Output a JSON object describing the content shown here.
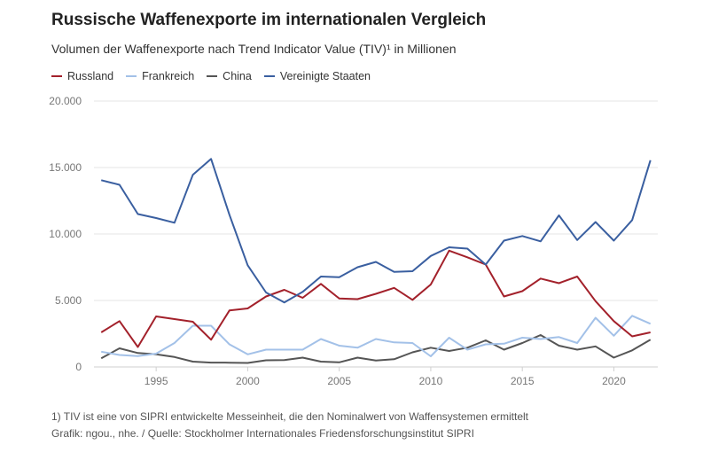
{
  "title": "Russische Waffenexporte im internationalen Vergleich",
  "subtitle": "Volumen der Waffenexporte nach Trend Indicator Value (TIV)¹ in Millionen",
  "footnote": "1) TIV ist eine von SIPRI entwickelte Messeinheit, die den Nominalwert von Waffensystemen ermittelt",
  "source": "Grafik: ngou., nhe. / Quelle: Stockholmer Internationales Friedensforschungsinstitut SIPRI",
  "chart_data": {
    "type": "line",
    "x": [
      1992,
      1993,
      1994,
      1995,
      1996,
      1997,
      1998,
      1999,
      2000,
      2001,
      2002,
      2003,
      2004,
      2005,
      2006,
      2007,
      2008,
      2009,
      2010,
      2011,
      2012,
      2013,
      2014,
      2015,
      2016,
      2017,
      2018,
      2019,
      2020,
      2021,
      2022
    ],
    "xlim": [
      1991.7,
      2022.4
    ],
    "ylim": [
      0,
      20000
    ],
    "x_ticks": [
      1995,
      2000,
      2005,
      2010,
      2015,
      2020
    ],
    "y_ticks": [
      0,
      5000,
      10000,
      15000,
      20000
    ],
    "y_tick_labels": [
      "0",
      "5.000",
      "10.000",
      "15.000",
      "20.000"
    ],
    "grid": "horizontal",
    "legend_position": "top-left",
    "series": [
      {
        "name": "Russland",
        "color": "#a3212b",
        "values": [
          2600,
          3450,
          1500,
          3800,
          3600,
          3400,
          2050,
          4250,
          4400,
          5300,
          5800,
          5200,
          6250,
          5150,
          5100,
          5500,
          5950,
          5050,
          6200,
          8750,
          8250,
          7700,
          5300,
          5700,
          6650,
          6300,
          6800,
          4950,
          3450,
          2300,
          2600
        ]
      },
      {
        "name": "Frankreich",
        "color": "#a3c1e8",
        "values": [
          1150,
          900,
          820,
          1000,
          1800,
          3100,
          3100,
          1700,
          950,
          1300,
          1300,
          1300,
          2100,
          1600,
          1450,
          2100,
          1850,
          1800,
          800,
          2200,
          1300,
          1700,
          1750,
          2200,
          2100,
          2250,
          1800,
          3700,
          2350,
          3850,
          3250
        ]
      },
      {
        "name": "China",
        "color": "#555555",
        "values": [
          650,
          1400,
          1050,
          950,
          750,
          400,
          330,
          320,
          300,
          500,
          520,
          700,
          400,
          350,
          700,
          480,
          580,
          1100,
          1450,
          1200,
          1450,
          2000,
          1300,
          1800,
          2400,
          1600,
          1300,
          1550,
          700,
          1250,
          2050
        ]
      },
      {
        "name": "Vereinigte Staaten",
        "color": "#3a5fa0",
        "values": [
          14050,
          13700,
          11500,
          11200,
          10850,
          14450,
          15650,
          11450,
          7650,
          5600,
          4850,
          5650,
          6800,
          6750,
          7500,
          7900,
          7150,
          7200,
          8350,
          9000,
          8900,
          7700,
          9500,
          9850,
          9450,
          11400,
          9550,
          10900,
          9500,
          11050,
          15550
        ]
      }
    ]
  }
}
